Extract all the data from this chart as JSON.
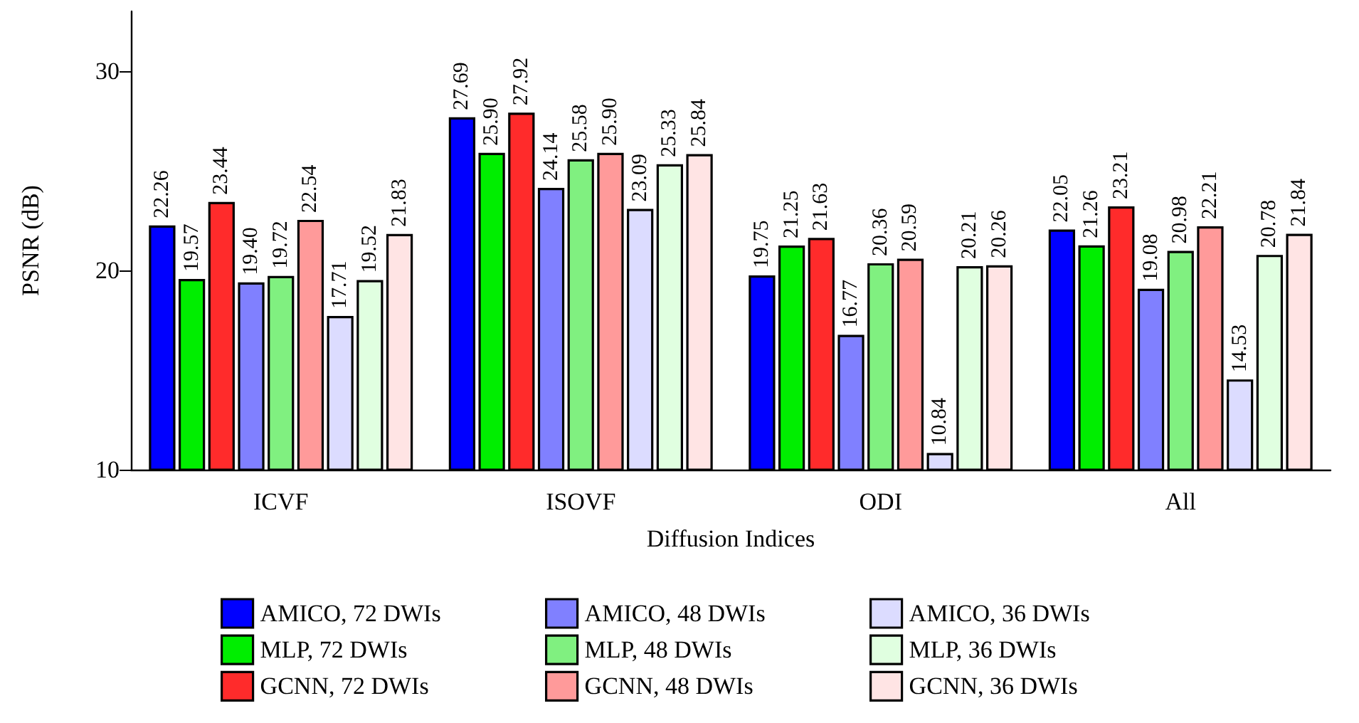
{
  "chart_data": {
    "type": "bar",
    "xlabel": "Diffusion Indices",
    "ylabel": "PSNR (dB)",
    "categories": [
      "ICVF",
      "ISOVF",
      "ODI",
      "All"
    ],
    "ylim": [
      10,
      33
    ],
    "yticks": [
      10,
      20,
      30
    ],
    "grid": false,
    "legend": "bottom",
    "series": [
      {
        "name": "AMICO, 72 DWIs",
        "color": "#0000ff",
        "values": [
          22.26,
          27.69,
          19.75,
          22.05
        ],
        "value_labels": [
          "22.26",
          "27.69",
          "19.75",
          "22.05"
        ]
      },
      {
        "name": "MLP, 72 DWIs",
        "color": "#00ee00",
        "values": [
          19.57,
          25.9,
          21.25,
          21.26
        ],
        "value_labels": [
          "19.57",
          "25.90",
          "21.25",
          "21.26"
        ]
      },
      {
        "name": "GCNN, 72 DWIs",
        "color": "#ff2b2b",
        "values": [
          23.44,
          27.92,
          21.63,
          23.21
        ],
        "value_labels": [
          "23.44",
          "27.92",
          "21.63",
          "23.21"
        ]
      },
      {
        "name": "AMICO, 48 DWIs",
        "color": "#8080ff",
        "values": [
          19.4,
          24.14,
          16.77,
          19.08
        ],
        "value_labels": [
          "19.40",
          "24.14",
          "16.77",
          "19.08"
        ]
      },
      {
        "name": "MLP, 48 DWIs",
        "color": "#80f080",
        "values": [
          19.72,
          25.58,
          20.36,
          20.98
        ],
        "value_labels": [
          "19.72",
          "25.58",
          "20.36",
          "20.98"
        ]
      },
      {
        "name": "GCNN, 48 DWIs",
        "color": "#ff9a9a",
        "values": [
          22.54,
          25.9,
          20.59,
          22.21
        ],
        "value_labels": [
          "22.54",
          "25.90",
          "20.59",
          "22.21"
        ]
      },
      {
        "name": "AMICO, 36 DWIs",
        "color": "#dcdcff",
        "values": [
          17.71,
          23.09,
          10.84,
          14.53
        ],
        "value_labels": [
          "17.71",
          "23.09",
          "10.84",
          "14.53"
        ]
      },
      {
        "name": "MLP, 36 DWIs",
        "color": "#e0ffe0",
        "values": [
          19.52,
          25.33,
          20.21,
          20.78
        ],
        "value_labels": [
          "19.52",
          "25.33",
          "20.21",
          "20.78"
        ]
      },
      {
        "name": "GCNN, 36 DWIs",
        "color": "#ffe4e4",
        "values": [
          21.83,
          25.84,
          20.26,
          21.84
        ],
        "value_labels": [
          "21.83",
          "25.84",
          "20.26",
          "21.84"
        ]
      }
    ]
  }
}
